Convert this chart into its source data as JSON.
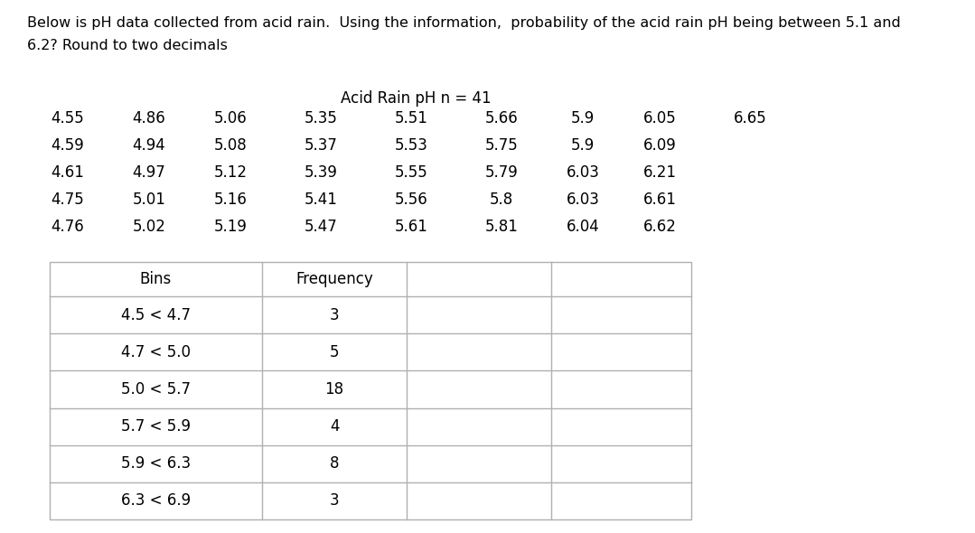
{
  "title_text": "Below is pH data collected from acid rain.  Using the information,  probability of the acid rain pH being between 5.1 and\n6.2? Round to two decimals",
  "data_title": "Acid Rain pH n = 41",
  "data_columns": [
    [
      "4.55",
      "4.59",
      "4.61",
      "4.75",
      "4.76"
    ],
    [
      "4.86",
      "4.94",
      "4.97",
      "5.01",
      "5.02"
    ],
    [
      "5.06",
      "5.08",
      "5.12",
      "5.16",
      "5.19"
    ],
    [
      "5.35",
      "5.37",
      "5.39",
      "5.41",
      "5.47"
    ],
    [
      "5.51",
      "5.53",
      "5.55",
      "5.56",
      "5.61"
    ],
    [
      "5.66",
      "5.75",
      "5.79",
      "5.8",
      "5.81"
    ],
    [
      "5.9",
      "5.9",
      "6.03",
      "6.03",
      "6.04"
    ],
    [
      "6.05",
      "6.09",
      "6.21",
      "6.61",
      "6.62"
    ],
    [
      "6.65",
      "",
      "",
      "",
      ""
    ]
  ],
  "table_headers": [
    "Bins",
    "Frequency",
    "",
    ""
  ],
  "table_rows": [
    [
      "4.5 < 4.7",
      "3",
      "",
      ""
    ],
    [
      "4.7 < 5.0",
      "5",
      "",
      ""
    ],
    [
      "5.0 < 5.7",
      "18",
      "",
      ""
    ],
    [
      "5.7 < 5.9",
      "4",
      "",
      ""
    ],
    [
      "5.9 < 6.3",
      "8",
      "",
      ""
    ],
    [
      "6.3 < 6.9",
      "3",
      "",
      ""
    ]
  ],
  "bg_color": "#ffffff",
  "text_color": "#000000",
  "table_line_color": "#b0b0b0",
  "font_size_title": 11.5,
  "font_size_data": 12,
  "font_size_table": 12
}
